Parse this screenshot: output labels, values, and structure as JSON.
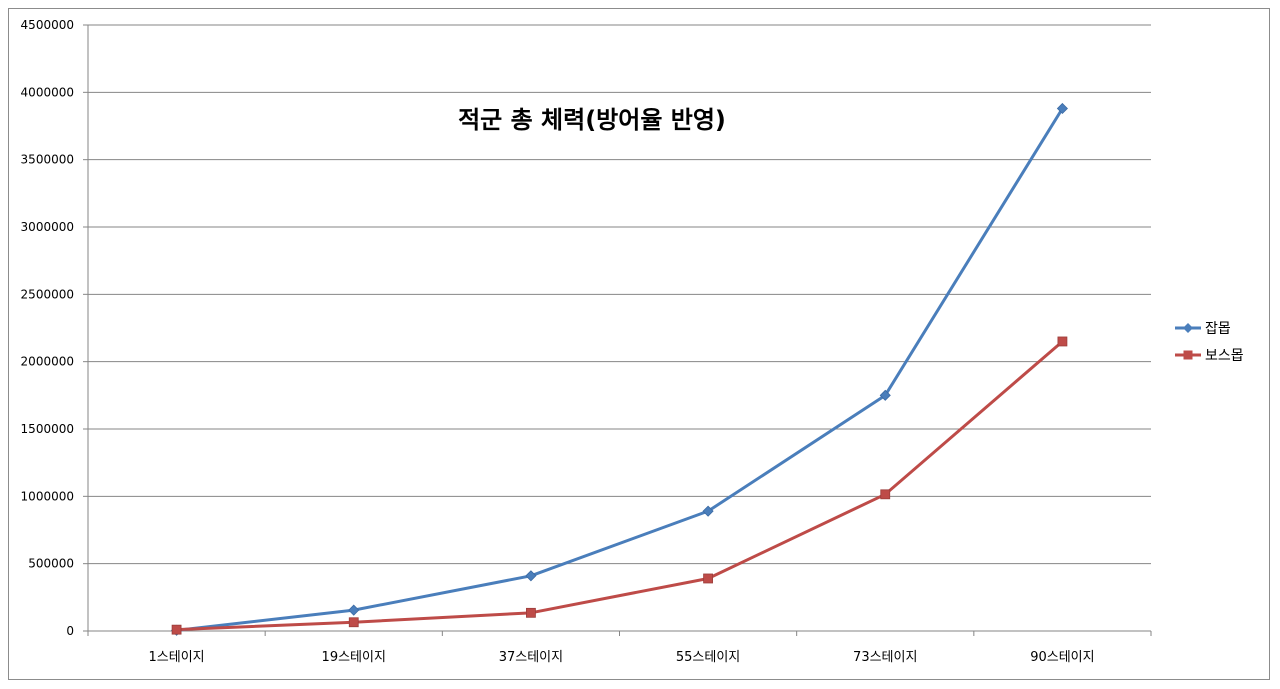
{
  "chart_data": {
    "type": "line",
    "title": "적군 총 체력(방어율 반영)",
    "categories": [
      "1스테이지",
      "19스테이지",
      "37스테이지",
      "55스테이지",
      "73스테이지",
      "90스테이지"
    ],
    "series": [
      {
        "name": "잡몹",
        "values": [
          5000,
          155000,
          410000,
          890000,
          1750000,
          3880000
        ],
        "color": "#4a7ebb",
        "marker": "diamond"
      },
      {
        "name": "보스몹",
        "values": [
          10000,
          65000,
          135000,
          390000,
          1015000,
          2150000
        ],
        "color": "#be4b48",
        "marker": "square"
      }
    ],
    "yticks": [
      "0",
      "500000",
      "1000000",
      "1500000",
      "2000000",
      "2500000",
      "3000000",
      "3500000",
      "4000000",
      "4500000"
    ],
    "ylim": [
      0,
      4500000
    ],
    "grid": true,
    "legend": "right"
  }
}
